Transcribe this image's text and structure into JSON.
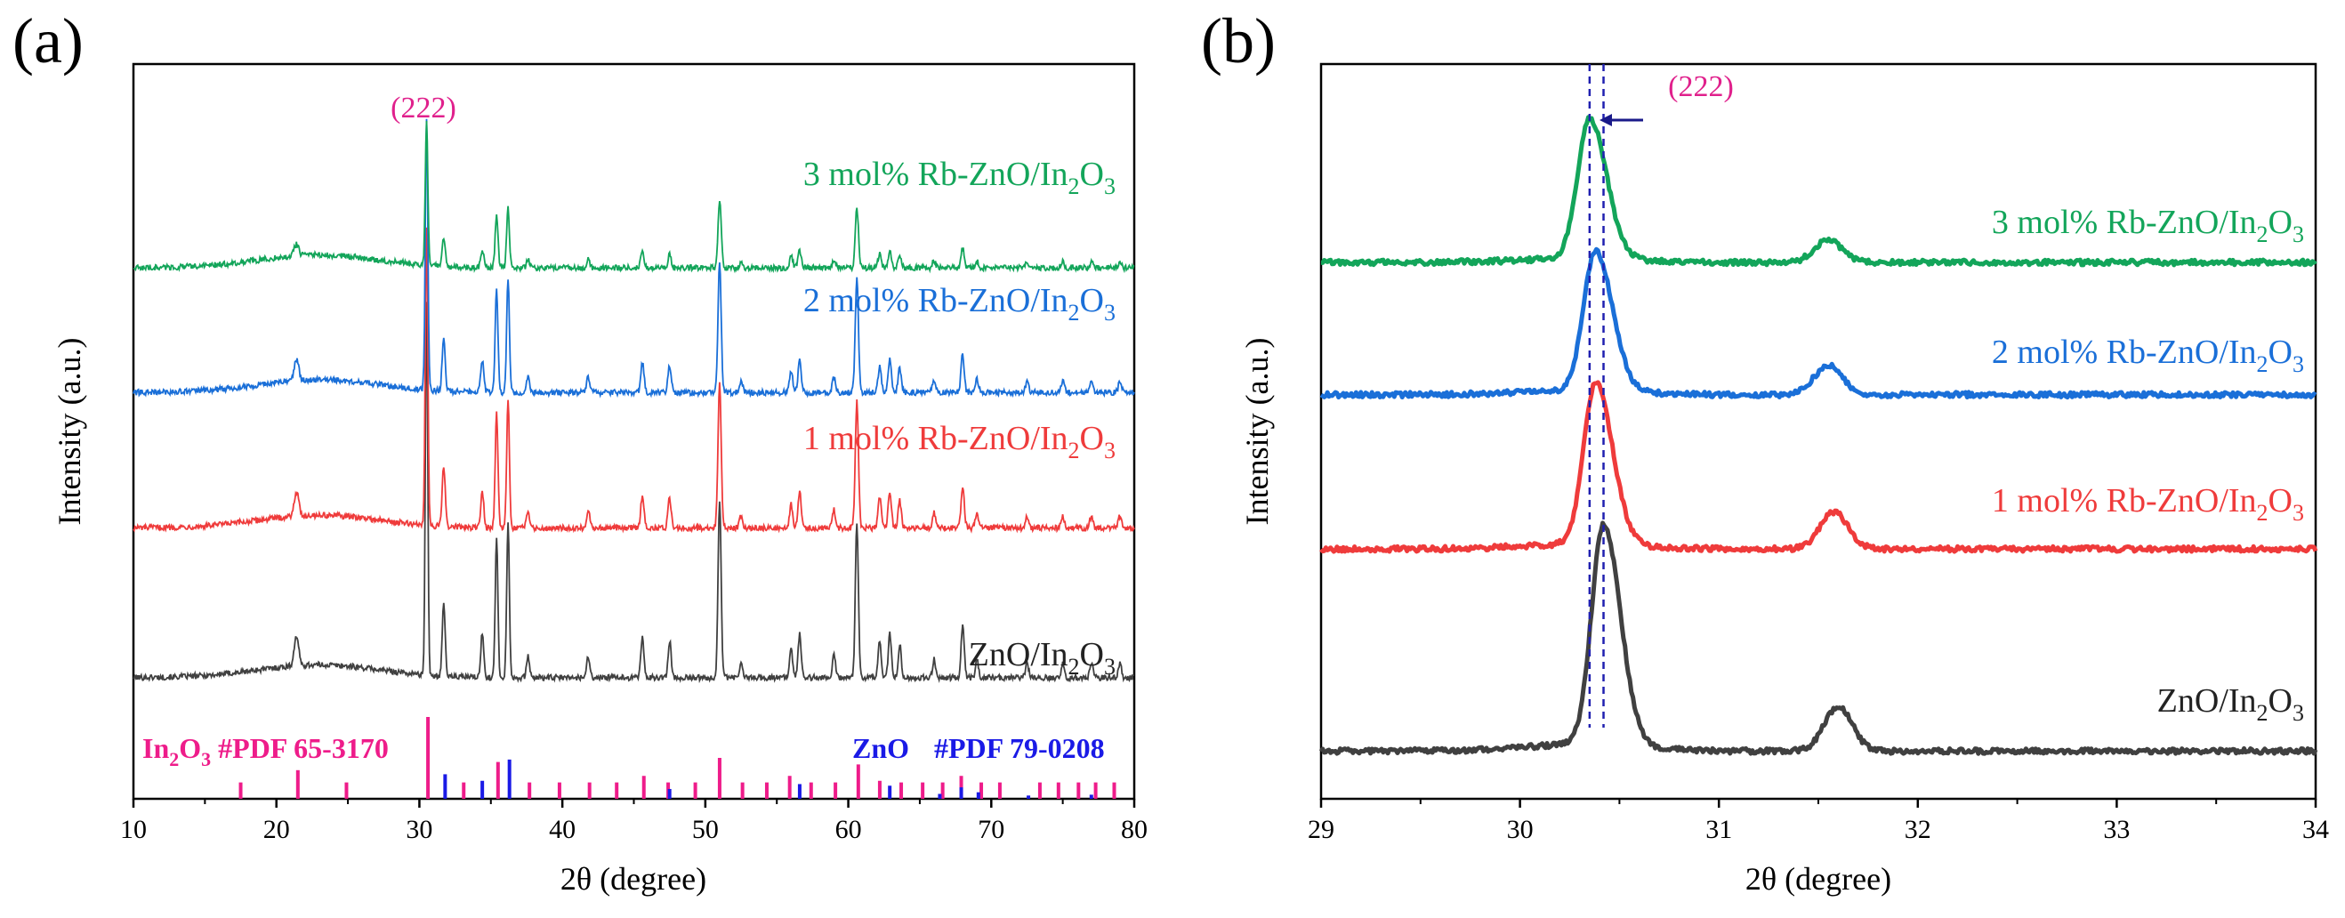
{
  "colors": {
    "s0": "#404040",
    "s1": "#ef3b3b",
    "s2": "#1a6fd8",
    "s3": "#13a55a",
    "in2o3": "#ee1c8a",
    "zno": "#1a1ae6",
    "peak_label": "#e0208c",
    "arrow": "#1a1a8a"
  },
  "chart_data": [
    {
      "panel": "(a)",
      "type": "line",
      "xlabel": "2θ (degree)",
      "ylabel": "Intensity (a.u.)",
      "xlim": [
        10,
        80
      ],
      "xticks": [
        10,
        20,
        30,
        40,
        50,
        60,
        70,
        80
      ],
      "xtick_labels": [
        "10",
        "20",
        "30",
        "40",
        "50",
        "60",
        "70",
        "80"
      ],
      "series": [
        {
          "key": "s0",
          "name": "ZnO/In2O3",
          "label": {
            "pre": "ZnO/In",
            "sub1": "2",
            "mid": "O",
            "sub2": "3"
          },
          "baseline": 0.17,
          "amplitude": 0.52
        },
        {
          "key": "s1",
          "name": "1 mol% Rb-ZnO/In2O3",
          "label": {
            "pre": "1 mol% Rb-ZnO/In",
            "sub1": "2",
            "mid": "O",
            "sub2": "3"
          },
          "baseline": 0.38,
          "amplitude": 0.42
        },
        {
          "key": "s2",
          "name": "2 mol% Rb-ZnO/In2O3",
          "label": {
            "pre": "2 mol% Rb-ZnO/In",
            "sub1": "2",
            "mid": "O",
            "sub2": "3"
          },
          "baseline": 0.57,
          "amplitude": 0.38
        },
        {
          "key": "s3",
          "name": "3 mol% Rb-ZnO/In2O3",
          "label": {
            "pre": "3 mol% Rb-ZnO/In",
            "sub1": "2",
            "mid": "O",
            "sub2": "3"
          },
          "baseline": 0.745,
          "amplitude": 0.2
        }
      ],
      "peaks": [
        {
          "pos": 21.4,
          "rel": 0.08,
          "width": 0.22
        },
        {
          "pos": 30.5,
          "rel": 1.0,
          "width": 0.12
        },
        {
          "pos": 31.7,
          "rel": 0.2,
          "width": 0.14
        },
        {
          "pos": 34.4,
          "rel": 0.12,
          "width": 0.14
        },
        {
          "pos": 35.4,
          "rel": 0.38,
          "width": 0.13
        },
        {
          "pos": 36.2,
          "rel": 0.42,
          "width": 0.13
        },
        {
          "pos": 37.6,
          "rel": 0.06,
          "width": 0.14
        },
        {
          "pos": 41.8,
          "rel": 0.06,
          "width": 0.15
        },
        {
          "pos": 45.6,
          "rel": 0.11,
          "width": 0.15
        },
        {
          "pos": 47.5,
          "rel": 0.1,
          "width": 0.15
        },
        {
          "pos": 51.0,
          "rel": 0.48,
          "width": 0.15
        },
        {
          "pos": 52.5,
          "rel": 0.04,
          "width": 0.15
        },
        {
          "pos": 56.0,
          "rel": 0.08,
          "width": 0.15
        },
        {
          "pos": 56.6,
          "rel": 0.12,
          "width": 0.15
        },
        {
          "pos": 59.0,
          "rel": 0.06,
          "width": 0.15
        },
        {
          "pos": 60.6,
          "rel": 0.42,
          "width": 0.15
        },
        {
          "pos": 62.2,
          "rel": 0.1,
          "width": 0.15
        },
        {
          "pos": 62.9,
          "rel": 0.12,
          "width": 0.15
        },
        {
          "pos": 63.6,
          "rel": 0.09,
          "width": 0.15
        },
        {
          "pos": 66.0,
          "rel": 0.05,
          "width": 0.15
        },
        {
          "pos": 68.0,
          "rel": 0.14,
          "width": 0.15
        },
        {
          "pos": 69.0,
          "rel": 0.05,
          "width": 0.15
        },
        {
          "pos": 72.5,
          "rel": 0.04,
          "width": 0.15
        },
        {
          "pos": 75.0,
          "rel": 0.04,
          "width": 0.15
        },
        {
          "pos": 77.0,
          "rel": 0.04,
          "width": 0.15
        },
        {
          "pos": 79.0,
          "rel": 0.04,
          "width": 0.15
        }
      ],
      "ref_in2o3": {
        "name": "In2O3 #PDF 65-3170",
        "label": {
          "pre": "In",
          "sub1": "2",
          "mid": "O",
          "sub2": "3",
          "post": " #PDF 65-3170"
        },
        "lines": [
          [
            17.5,
            0.2
          ],
          [
            21.5,
            0.35
          ],
          [
            24.9,
            0.2
          ],
          [
            30.6,
            1.0
          ],
          [
            33.1,
            0.2
          ],
          [
            35.5,
            0.45
          ],
          [
            37.7,
            0.2
          ],
          [
            39.8,
            0.2
          ],
          [
            41.9,
            0.2
          ],
          [
            43.8,
            0.2
          ],
          [
            45.7,
            0.28
          ],
          [
            47.4,
            0.2
          ],
          [
            49.3,
            0.2
          ],
          [
            51.0,
            0.5
          ],
          [
            52.6,
            0.2
          ],
          [
            54.3,
            0.2
          ],
          [
            55.9,
            0.28
          ],
          [
            57.4,
            0.2
          ],
          [
            59.1,
            0.2
          ],
          [
            60.7,
            0.42
          ],
          [
            62.2,
            0.22
          ],
          [
            63.7,
            0.2
          ],
          [
            65.2,
            0.2
          ],
          [
            66.6,
            0.2
          ],
          [
            67.9,
            0.28
          ],
          [
            69.3,
            0.2
          ],
          [
            70.6,
            0.2
          ],
          [
            73.4,
            0.2
          ],
          [
            74.7,
            0.2
          ],
          [
            76.1,
            0.2
          ],
          [
            77.3,
            0.2
          ],
          [
            78.6,
            0.2
          ]
        ]
      },
      "ref_zno": {
        "name": "ZnO #PDF 79-0208",
        "label_a": "ZnO",
        "label_b": "#PDF 79-0208",
        "lines": [
          [
            31.8,
            0.3
          ],
          [
            34.4,
            0.22
          ],
          [
            36.3,
            0.48
          ],
          [
            47.5,
            0.12
          ],
          [
            56.6,
            0.18
          ],
          [
            62.9,
            0.16
          ],
          [
            66.4,
            0.06
          ],
          [
            67.9,
            0.14
          ],
          [
            69.1,
            0.08
          ],
          [
            72.6,
            0.04
          ],
          [
            77.0,
            0.05
          ]
        ]
      },
      "annotation": "(222)"
    },
    {
      "panel": "(b)",
      "type": "line",
      "xlabel": "2θ (degree)",
      "ylabel": "Intensity (a.u.)",
      "xlim": [
        29,
        34
      ],
      "xticks": [
        29,
        30,
        31,
        32,
        33,
        34
      ],
      "xtick_labels": [
        "29",
        "30",
        "31",
        "32",
        "33",
        "34"
      ],
      "series": [
        {
          "key": "s0",
          "name": "ZnO/In2O3",
          "label": {
            "pre": "ZnO/In",
            "sub1": "2",
            "mid": "O",
            "sub2": "3"
          },
          "baseline": 0.065,
          "peak_pos": 30.42,
          "peak_height": 0.3,
          "small_pos": 31.6,
          "small_height": 0.06
        },
        {
          "key": "s1",
          "name": "1 mol% Rb-ZnO/In2O3",
          "label": {
            "pre": "1 mol% Rb-ZnO/In",
            "sub1": "2",
            "mid": "O",
            "sub2": "3"
          },
          "baseline": 0.34,
          "peak_pos": 30.38,
          "peak_height": 0.22,
          "small_pos": 31.58,
          "small_height": 0.05
        },
        {
          "key": "s2",
          "name": "2 mol% Rb-ZnO/In2O3",
          "label": {
            "pre": "2 mol% Rb-ZnO/In",
            "sub1": "2",
            "mid": "O",
            "sub2": "3"
          },
          "baseline": 0.55,
          "peak_pos": 30.38,
          "peak_height": 0.19,
          "small_pos": 31.55,
          "small_height": 0.04
        },
        {
          "key": "s3",
          "name": "3 mol% Rb-ZnO/In2O3",
          "label": {
            "pre": "3 mol% Rb-ZnO/In",
            "sub1": "2",
            "mid": "O",
            "sub2": "3"
          },
          "baseline": 0.73,
          "peak_pos": 30.35,
          "peak_height": 0.19,
          "small_pos": 31.55,
          "small_height": 0.03
        }
      ],
      "dashed_lines": [
        30.35,
        30.42
      ],
      "annotation": "(222)"
    }
  ]
}
